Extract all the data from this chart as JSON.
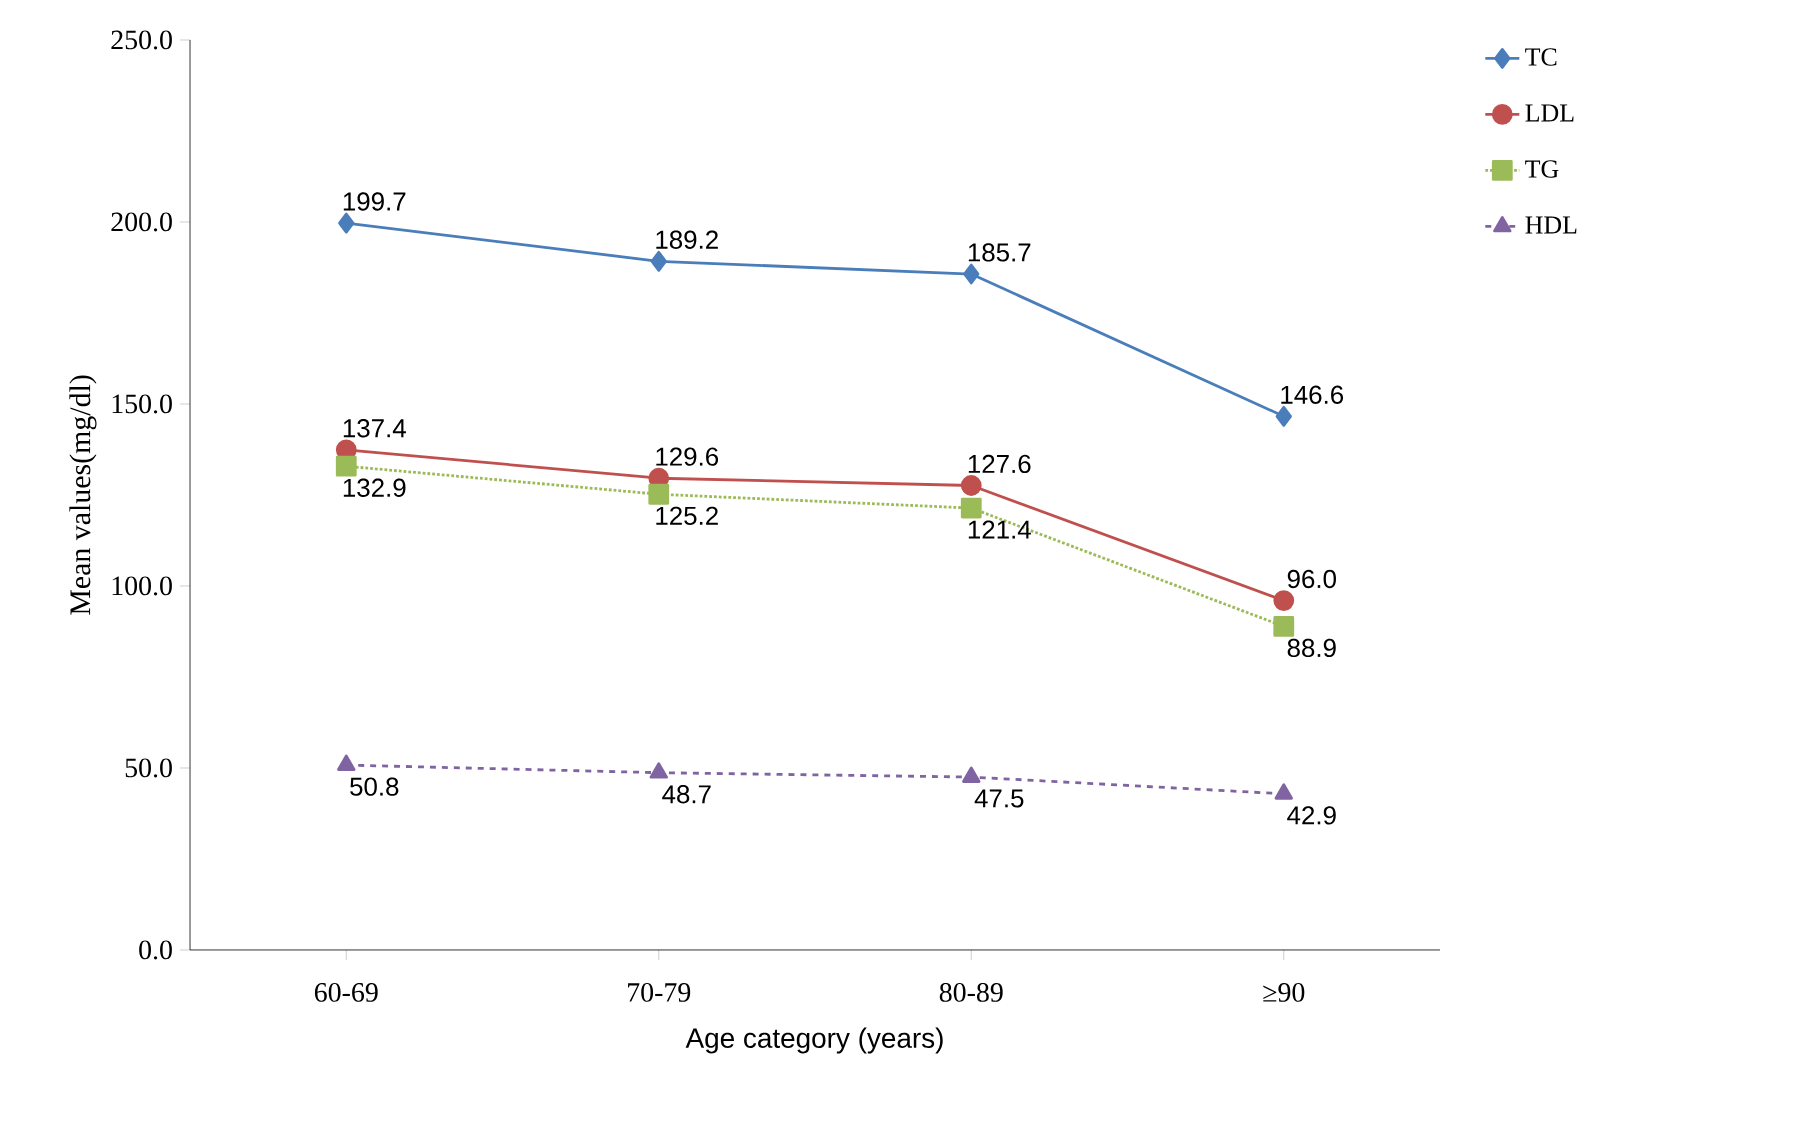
{
  "chart_data": {
    "type": "line",
    "xlabel": "Age category (years)",
    "ylabel": "Mean values(mg/dl)",
    "categories": [
      "60-69",
      "70-79",
      "80-89",
      "≥90"
    ],
    "series": [
      {
        "name": "TC",
        "color": "#4a7ebb",
        "values": [
          199.7,
          189.2,
          185.7,
          146.6
        ],
        "value_labels": [
          "199.7",
          "189.2",
          "185.7",
          "146.6"
        ],
        "marker": "diamond",
        "line_style": "solid"
      },
      {
        "name": "LDL",
        "color": "#c0504d",
        "values": [
          137.4,
          129.6,
          127.6,
          96.0
        ],
        "value_labels": [
          "137.4",
          "129.6",
          "127.6",
          "96.0"
        ],
        "marker": "circle",
        "line_style": "solid"
      },
      {
        "name": "TG",
        "color": "#9bbb59",
        "values": [
          132.9,
          125.2,
          121.4,
          88.9
        ],
        "value_labels": [
          "132.9",
          "125.2",
          "121.4",
          "88.9"
        ],
        "marker": "square",
        "line_style": "dotted"
      },
      {
        "name": "HDL",
        "color": "#8064a2",
        "values": [
          50.8,
          48.7,
          47.5,
          42.9
        ],
        "value_labels": [
          "50.8",
          "48.7",
          "47.5",
          "42.9"
        ],
        "marker": "triangle",
        "line_style": "dashed"
      }
    ],
    "ylim": [
      0,
      250
    ],
    "yticks": [
      {
        "value": 0,
        "label": "0.0"
      },
      {
        "value": 50,
        "label": "50.0"
      },
      {
        "value": 100,
        "label": "100.0"
      },
      {
        "value": 150,
        "label": "150.0"
      },
      {
        "value": 200,
        "label": "200.0"
      },
      {
        "value": 250,
        "label": "250.0"
      }
    ],
    "legend": "right",
    "grid": false
  }
}
